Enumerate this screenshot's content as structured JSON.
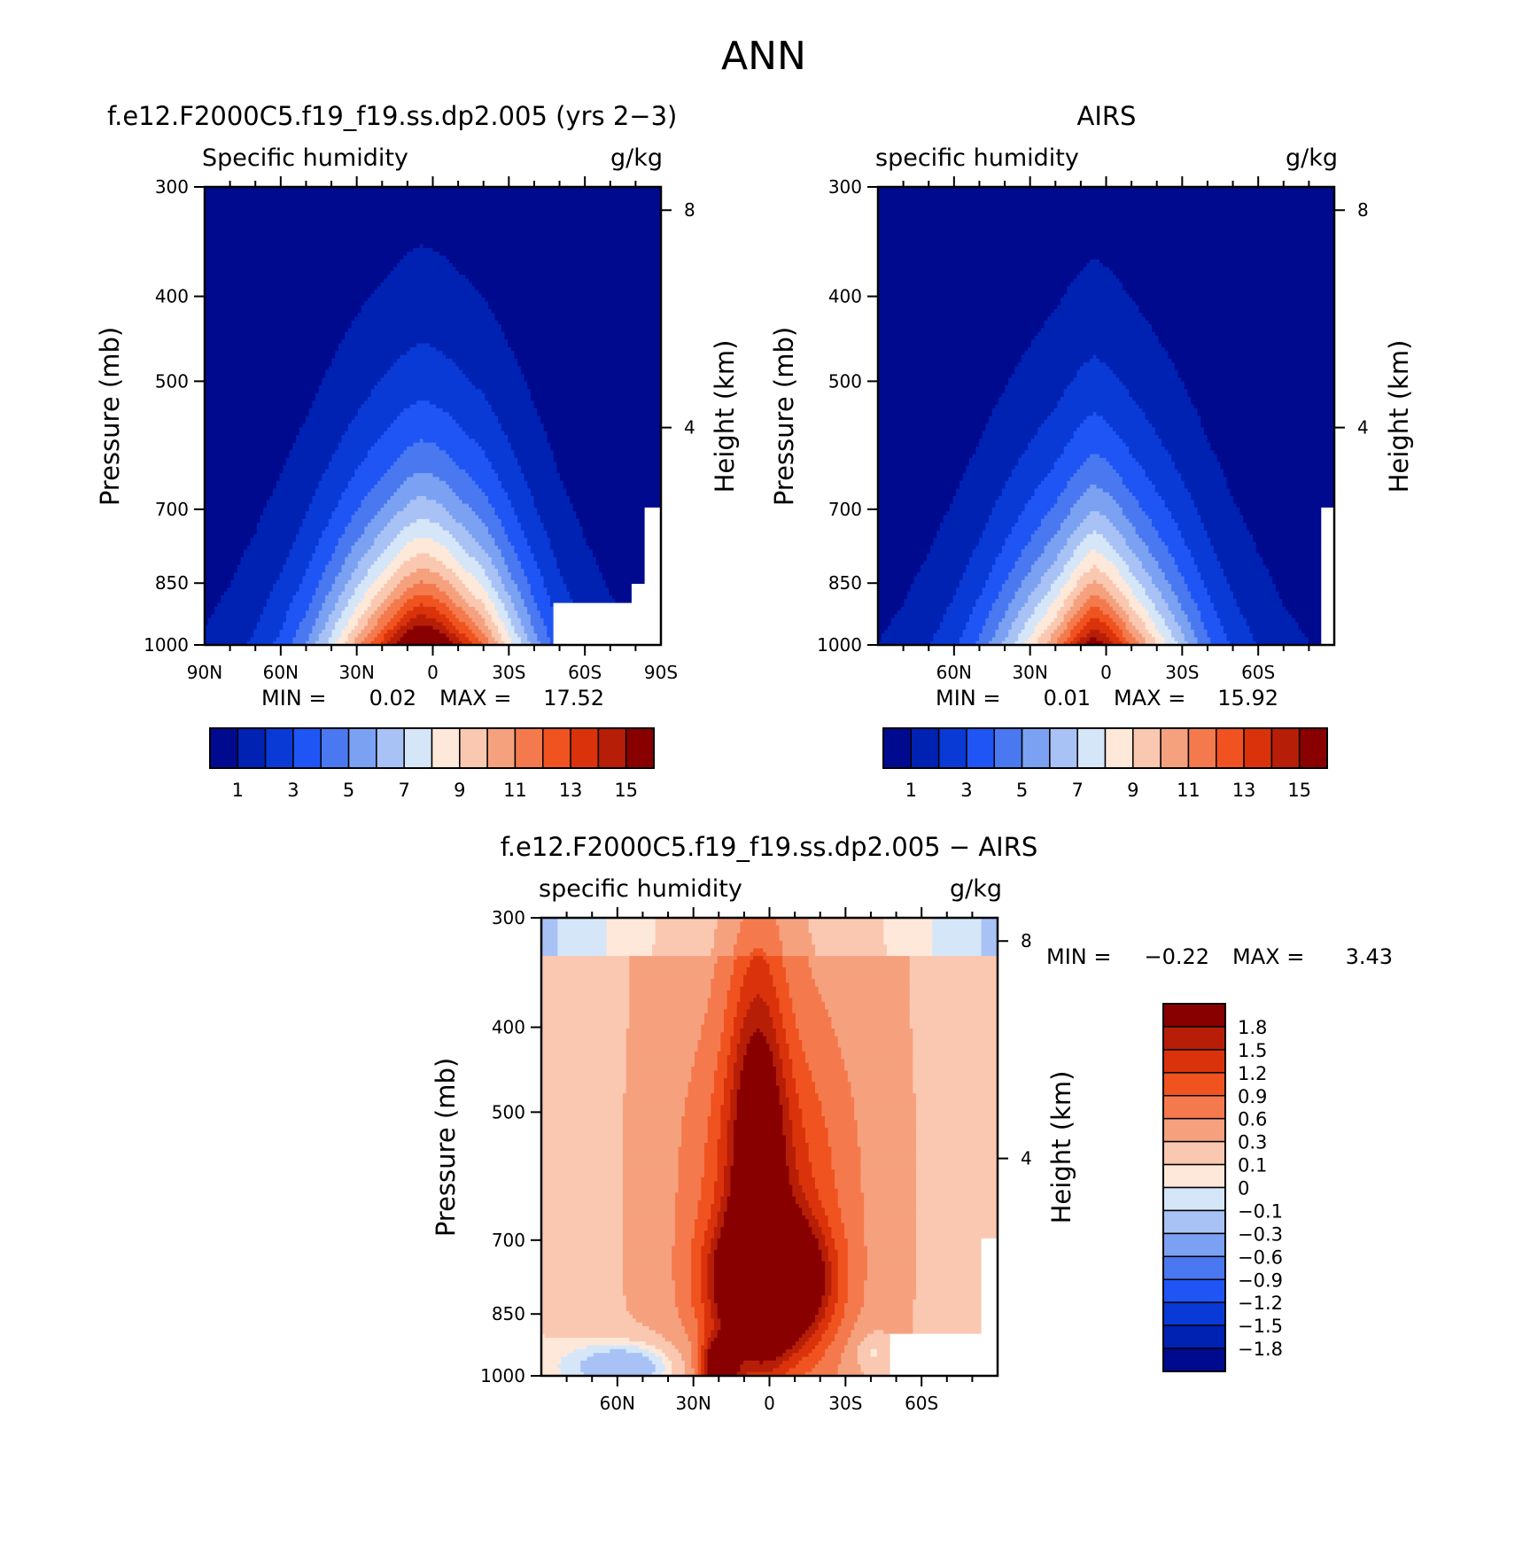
{
  "figure": {
    "title": "ANN"
  },
  "colorbars": {
    "abs_colors": [
      "#000a8f",
      "#0022b3",
      "#0a3ad6",
      "#1f55f5",
      "#4a78f0",
      "#7ba1f2",
      "#a9c2f5",
      "#d5e6f9",
      "#fde8d9",
      "#fac8b0",
      "#f6a17e",
      "#f47a4e",
      "#f0531f",
      "#da330b",
      "#b71e07",
      "#880000"
    ],
    "abs_labels": [
      "1",
      "3",
      "5",
      "7",
      "9",
      "11",
      "13",
      "15"
    ],
    "diff_colors": [
      "#000a8f",
      "#0022b3",
      "#0a3ad6",
      "#1f55f5",
      "#4a78f0",
      "#7ba1f2",
      "#a9c2f5",
      "#d5e6f9",
      "#fde8d9",
      "#fac8b0",
      "#f6a17e",
      "#f47a4e",
      "#f0531f",
      "#da330b",
      "#b71e07",
      "#880000"
    ],
    "diff_labels": [
      "1.8",
      "1.5",
      "1.2",
      "0.9",
      "0.6",
      "0.3",
      "0.1",
      "0",
      "−0.1",
      "−0.3",
      "−0.6",
      "−0.9",
      "−1.2",
      "−1.5",
      "−1.8"
    ]
  },
  "panels": {
    "model": {
      "title": "f.e12.F2000C5.f19_f19.ss.dp2.005 (yrs 2−3)",
      "left_label": "Specific humidity",
      "right_label": "g/kg",
      "ylabel": "Pressure (mb)",
      "ylabel_right": "Height (km)",
      "min_label": "MIN =",
      "min_value": "0.02",
      "max_label": "MAX =",
      "max_value": "17.52"
    },
    "obs": {
      "title": "AIRS",
      "left_label": "specific humidity",
      "right_label": "g/kg",
      "ylabel": "Pressure (mb)",
      "ylabel_right": "Height (km)",
      "min_label": "MIN =",
      "min_value": "0.01",
      "max_label": "MAX =",
      "max_value": "15.92"
    },
    "diff": {
      "title": "f.e12.F2000C5.f19_f19.ss.dp2.005 − AIRS",
      "left_label": "specific humidity",
      "right_label": "g/kg",
      "ylabel": "Pressure (mb)",
      "ylabel_right": "Height (km)",
      "min_label": "MIN =",
      "min_value": "−0.22",
      "max_label": "MAX =",
      "max_value": "3.43"
    }
  },
  "chart_data": [
    {
      "type": "heatmap",
      "title": "f.e12.F2000C5.f19_f19.ss.dp2.005 (yrs 2−3)",
      "variable": "Specific humidity",
      "units": "g/kg",
      "ylabel": "Pressure (mb)",
      "ylabel_right": "Height (km)",
      "y_scale": "log",
      "ylim": [
        1000,
        300
      ],
      "yticks": [
        "300",
        "400",
        "500",
        "700",
        "850",
        "1000"
      ],
      "yticks_right": [
        "8",
        "4"
      ],
      "xlim": [
        90,
        -90
      ],
      "xticks": [
        "90N",
        "60N",
        "30N",
        "0",
        "30S",
        "60S",
        "90S"
      ],
      "levels": [
        1,
        2,
        3,
        4,
        5,
        6,
        7,
        8,
        9,
        10,
        11,
        12,
        13,
        14,
        15
      ],
      "min": 0.02,
      "max": 17.52,
      "profile_lats": [
        90,
        80,
        70,
        60,
        50,
        40,
        30,
        20,
        10,
        5,
        0,
        -5,
        -10,
        -20,
        -30,
        -40,
        -50,
        -60,
        -70,
        -80,
        -90
      ],
      "profile_peak": [
        1.1,
        1.5,
        2.2,
        3.3,
        5.0,
        7.5,
        10.5,
        13.5,
        16.5,
        17.4,
        17.0,
        16.0,
        14.5,
        12.0,
        8.5,
        5.5,
        3.3,
        2.1,
        1.4,
        1.0,
        0.8
      ],
      "ground_mask": [
        {
          "from_lat": -48,
          "to_lat": -90,
          "below_mb": 900
        },
        {
          "from_lat": -79,
          "to_lat": -90,
          "below_mb": 850
        },
        {
          "from_lat": -84,
          "to_lat": -90,
          "below_mb": 700
        }
      ]
    },
    {
      "type": "heatmap",
      "title": "AIRS",
      "variable": "specific humidity",
      "units": "g/kg",
      "ylabel": "Pressure (mb)",
      "ylabel_right": "Height (km)",
      "y_scale": "log",
      "ylim": [
        1000,
        300
      ],
      "yticks": [
        "300",
        "400",
        "500",
        "700",
        "850",
        "1000"
      ],
      "yticks_right": [
        "8",
        "4"
      ],
      "xlim": [
        90,
        -90
      ],
      "xticks": [
        "60N",
        "30N",
        "0",
        "30S",
        "60S"
      ],
      "levels": [
        1,
        2,
        3,
        4,
        5,
        6,
        7,
        8,
        9,
        10,
        11,
        12,
        13,
        14,
        15
      ],
      "min": 0.01,
      "max": 15.92,
      "profile_lats": [
        90,
        80,
        70,
        60,
        50,
        40,
        30,
        20,
        10,
        5,
        0,
        -5,
        -10,
        -20,
        -30,
        -40,
        -50,
        -60,
        -70,
        -80,
        -90
      ],
      "profile_peak": [
        1.0,
        1.3,
        1.9,
        2.8,
        4.2,
        6.2,
        8.5,
        11.0,
        14.5,
        15.9,
        15.0,
        13.5,
        11.8,
        9.0,
        6.5,
        4.3,
        2.8,
        1.9,
        1.3,
        1.0,
        0.8
      ],
      "ground_mask": [
        {
          "from_lat": -85,
          "to_lat": -90,
          "below_mb": 700
        }
      ]
    },
    {
      "type": "heatmap",
      "title": "f.e12.F2000C5.f19_f19.ss.dp2.005 − AIRS",
      "variable": "specific humidity",
      "units": "g/kg",
      "ylabel": "Pressure (mb)",
      "ylabel_right": "Height (km)",
      "y_scale": "log",
      "ylim": [
        1000,
        300
      ],
      "yticks": [
        "300",
        "400",
        "500",
        "700",
        "850",
        "1000"
      ],
      "yticks_right": [
        "8",
        "4"
      ],
      "xlim": [
        90,
        -90
      ],
      "xticks": [
        "60N",
        "30N",
        "0",
        "30S",
        "60S"
      ],
      "levels": [
        -1.8,
        -1.5,
        -1.2,
        -0.9,
        -0.6,
        -0.3,
        -0.1,
        0,
        0.1,
        0.3,
        0.6,
        0.9,
        1.2,
        1.5,
        1.8
      ],
      "min": -0.22,
      "max": 3.43,
      "ground_mask": [
        {
          "from_lat": -48,
          "to_lat": -90,
          "below_mb": 900
        },
        {
          "from_lat": -84,
          "to_lat": -90,
          "below_mb": 700
        }
      ]
    }
  ]
}
